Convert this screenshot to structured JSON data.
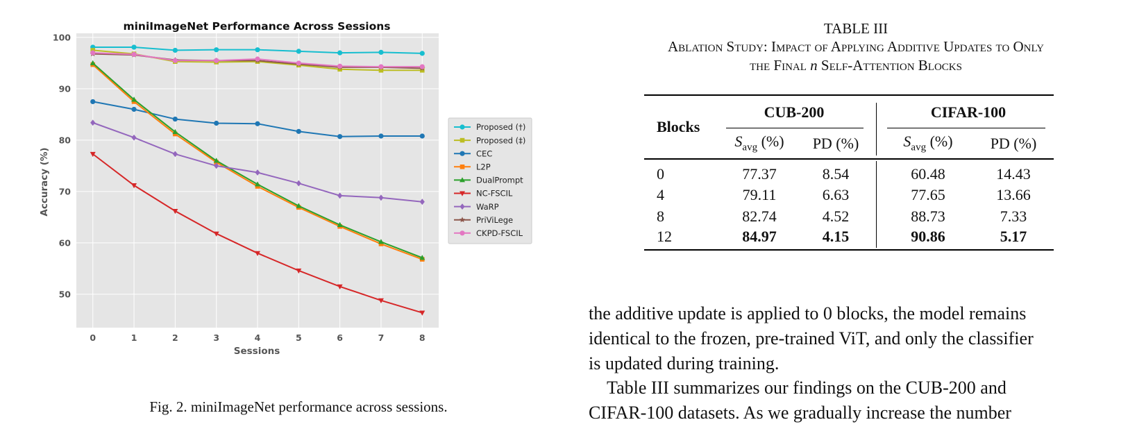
{
  "chart_data": {
    "type": "line",
    "title": "miniImageNet Performance Across Sessions",
    "xlabel": "Sessions",
    "ylabel": "Accuracy (%)",
    "x": [
      0,
      1,
      2,
      3,
      4,
      5,
      6,
      7,
      8
    ],
    "xlim": [
      -0.4,
      8.4
    ],
    "ylim": [
      43.5,
      100.8
    ],
    "yticks": [
      50,
      60,
      70,
      80,
      90,
      100
    ],
    "grid": true,
    "legend_position": "center-right",
    "series": [
      {
        "name": "Proposed (†)",
        "color": "#17becf",
        "marker": "circle",
        "values": [
          98.1,
          98.1,
          97.5,
          97.6,
          97.6,
          97.3,
          97.0,
          97.1,
          96.9
        ]
      },
      {
        "name": "Proposed (‡)",
        "color": "#bcbd22",
        "marker": "square",
        "values": [
          97.5,
          96.8,
          95.3,
          95.2,
          95.3,
          94.6,
          93.8,
          93.6,
          93.6
        ]
      },
      {
        "name": "CEC",
        "color": "#1f77b4",
        "marker": "circle",
        "values": [
          87.5,
          86.0,
          84.1,
          83.3,
          83.2,
          81.7,
          80.7,
          80.8,
          80.8
        ]
      },
      {
        "name": "L2P",
        "color": "#ff7f0e",
        "marker": "square",
        "values": [
          94.7,
          87.5,
          81.2,
          75.7,
          71.0,
          66.9,
          63.2,
          59.8,
          56.8
        ]
      },
      {
        "name": "DualPrompt",
        "color": "#2ca02c",
        "marker": "triangle-up",
        "values": [
          95.0,
          87.9,
          81.6,
          76.0,
          71.4,
          67.2,
          63.5,
          60.2,
          57.1
        ]
      },
      {
        "name": "NC-FSCIL",
        "color": "#d62728",
        "marker": "triangle-down",
        "values": [
          77.3,
          71.2,
          66.2,
          61.8,
          58.0,
          54.6,
          51.5,
          48.8,
          46.4
        ]
      },
      {
        "name": "WaRP",
        "color": "#9467bd",
        "marker": "diamond",
        "values": [
          83.4,
          80.5,
          77.3,
          75.0,
          73.7,
          71.6,
          69.2,
          68.8,
          68.0
        ]
      },
      {
        "name": "PriViLege",
        "color": "#8c564b",
        "marker": "star",
        "values": [
          96.8,
          96.6,
          95.6,
          95.5,
          95.5,
          94.8,
          94.2,
          94.2,
          94.0
        ]
      },
      {
        "name": "CKPD-FSCIL",
        "color": "#e377c2",
        "marker": "circle",
        "values": [
          97.0,
          96.7,
          95.5,
          95.5,
          95.8,
          95.0,
          94.4,
          94.3,
          94.3
        ]
      }
    ]
  },
  "figure": {
    "caption": "Fig. 2.  miniImageNet performance across sessions."
  },
  "table": {
    "label": "TABLE III",
    "title_line1": "Ablation Study: Impact of Applying Additive Updates to Only",
    "title_line2_pre": "the Final ",
    "title_line2_var": "n",
    "title_line2_post": " Self-Attention Blocks",
    "col_blocks": "Blocks",
    "group_cub": "CUB-200",
    "group_cifar": "CIFAR-100",
    "savg_s": "S",
    "savg_sub": "avg",
    "savg_unit": " (%)",
    "pd": "PD (%)",
    "rows": [
      {
        "blocks": "0",
        "cub_savg": "77.37",
        "cub_pd": "8.54",
        "cifar_savg": "60.48",
        "cifar_pd": "14.43"
      },
      {
        "blocks": "4",
        "cub_savg": "79.11",
        "cub_pd": "6.63",
        "cifar_savg": "77.65",
        "cifar_pd": "13.66"
      },
      {
        "blocks": "8",
        "cub_savg": "82.74",
        "cub_pd": "4.52",
        "cifar_savg": "88.73",
        "cifar_pd": "7.33"
      },
      {
        "blocks": "12",
        "cub_savg": "84.97",
        "cub_pd": "4.15",
        "cifar_savg": "90.86",
        "cifar_pd": "5.17"
      }
    ]
  },
  "body": {
    "p1_lines": [
      "the additive update is applied to 0 blocks, the model remains",
      "identical to the frozen, pre-trained ViT, and only the classifier",
      "is updated during training."
    ],
    "p2_lines": [
      "Table III summarizes our findings on the CUB-200 and",
      "CIFAR-100 datasets. As we gradually increase the number"
    ]
  }
}
